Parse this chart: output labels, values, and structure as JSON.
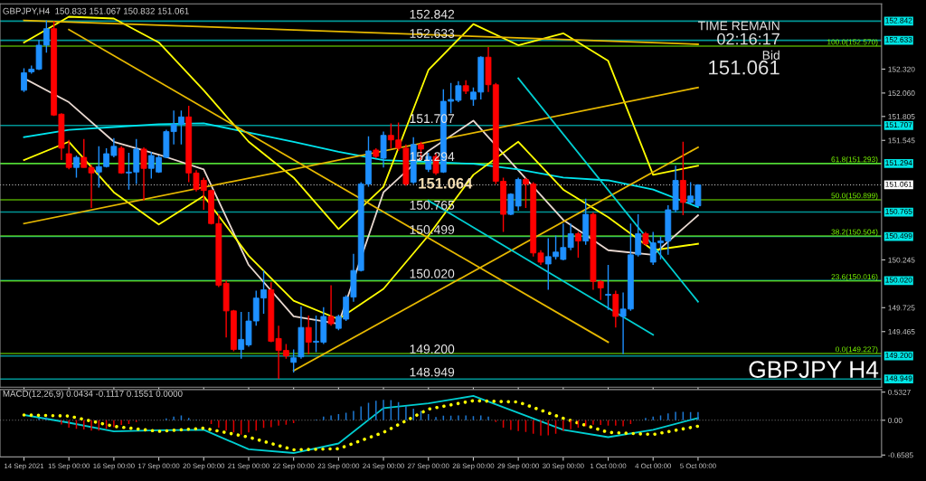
{
  "chart_data": [
    {
      "type": "candlestick",
      "title": "GBPJPY,H4  150.833 151.067 150.832 151.061",
      "categories": [
        "14 Sep 2021",
        null,
        null,
        null,
        null,
        null,
        "15 Sep 00:00",
        null,
        null,
        null,
        null,
        null,
        "16 Sep 00:00",
        null,
        null,
        null,
        null,
        null,
        "17 Sep 00:00",
        null,
        null,
        null,
        null,
        null,
        "20 Sep 00:00",
        null,
        null,
        null,
        null,
        null,
        "21 Sep 00:00",
        null,
        null,
        null,
        null,
        null,
        "22 Sep 00:00",
        null,
        null,
        null,
        null,
        null,
        "23 Sep 00:00",
        null,
        null,
        null,
        null,
        null,
        "24 Sep 00:00",
        null,
        null,
        null,
        null,
        null,
        "27 Sep 00:00",
        null,
        null,
        null,
        null,
        null,
        "28 Sep 00:00",
        null,
        null,
        null,
        null,
        null,
        "29 Sep 00:00",
        null,
        null,
        null,
        null,
        null,
        "30 Sep 00:00",
        null,
        null,
        null,
        null,
        null,
        "1 Oct 00:00",
        null,
        null,
        null,
        null,
        null,
        "4 Oct 00:00",
        null,
        null,
        null,
        null,
        null,
        "5 Oct 00:00",
        null,
        null,
        null,
        null,
        null,
        null,
        null,
        null,
        null,
        null,
        null,
        null,
        null,
        null,
        null,
        null,
        null,
        null,
        null,
        null,
        null,
        null,
        null,
        null
      ],
      "ohlc": [
        [
          152.09,
          152.33,
          152.07,
          152.28
        ],
        [
          152.29,
          152.36,
          152.27,
          152.32
        ],
        [
          152.32,
          152.64,
          152.31,
          152.58
        ],
        [
          152.58,
          152.85,
          152.5,
          152.76
        ],
        [
          152.76,
          152.84,
          151.81,
          151.82
        ],
        [
          151.83,
          151.84,
          151.33,
          151.46
        ],
        [
          151.4,
          151.55,
          151.23,
          151.25
        ],
        [
          151.25,
          151.38,
          151.14,
          151.36
        ],
        [
          151.36,
          151.56,
          151.25,
          151.25
        ],
        [
          151.25,
          151.28,
          150.81,
          151.19
        ],
        [
          151.2,
          151.48,
          151.03,
          151.26
        ],
        [
          151.26,
          151.46,
          151.25,
          151.4
        ],
        [
          151.38,
          151.57,
          151.36,
          151.48
        ],
        [
          151.46,
          151.48,
          151.18,
          151.19
        ],
        [
          151.19,
          151.41,
          151.01,
          151.2
        ],
        [
          151.2,
          151.56,
          151.07,
          151.45
        ],
        [
          151.45,
          151.47,
          150.89,
          151.24
        ],
        [
          151.24,
          151.42,
          151.13,
          151.38
        ],
        [
          151.2,
          151.38,
          151.19,
          151.36
        ],
        [
          151.36,
          151.66,
          151.35,
          151.64
        ],
        [
          151.64,
          151.87,
          151.5,
          151.72
        ],
        [
          151.72,
          151.87,
          151.5,
          151.8
        ],
        [
          151.8,
          151.92,
          151.09,
          151.19
        ],
        [
          151.19,
          151.22,
          150.99,
          151.01
        ],
        [
          151.11,
          151.14,
          150.79,
          151.0
        ],
        [
          151.0,
          151.01,
          150.63,
          150.64
        ],
        [
          150.64,
          150.74,
          149.95,
          149.97
        ],
        [
          149.99,
          150.02,
          149.4,
          149.69
        ],
        [
          149.69,
          149.7,
          149.25,
          149.27
        ],
        [
          149.27,
          149.68,
          149.17,
          149.38
        ],
        [
          149.32,
          149.68,
          149.3,
          149.58
        ],
        [
          149.58,
          149.91,
          149.53,
          149.83
        ],
        [
          149.83,
          150.13,
          149.66,
          149.92
        ],
        [
          149.92,
          150.0,
          149.35,
          149.36
        ],
        [
          149.39,
          149.53,
          148.95,
          149.26
        ],
        [
          149.26,
          149.33,
          149.17,
          149.2
        ],
        [
          149.13,
          149.27,
          149.02,
          149.18
        ],
        [
          149.19,
          149.74,
          149.17,
          149.51
        ],
        [
          149.51,
          149.64,
          149.22,
          149.35
        ],
        [
          149.35,
          149.64,
          149.24,
          149.36
        ],
        [
          149.35,
          149.73,
          149.33,
          149.63
        ],
        [
          149.63,
          149.97,
          149.53,
          149.55
        ],
        [
          149.5,
          149.65,
          149.48,
          149.63
        ],
        [
          149.6,
          149.86,
          149.58,
          149.84
        ],
        [
          149.84,
          150.31,
          149.79,
          150.13
        ],
        [
          150.13,
          151.09,
          150.12,
          151.07
        ],
        [
          151.07,
          151.59,
          151.04,
          151.43
        ],
        [
          151.44,
          151.46,
          151.35,
          151.37
        ],
        [
          151.35,
          151.64,
          151.25,
          151.6
        ],
        [
          151.6,
          151.73,
          151.46,
          151.55
        ],
        [
          151.55,
          151.74,
          151.43,
          151.46
        ],
        [
          151.46,
          151.5,
          151.05,
          151.07
        ],
        [
          151.09,
          151.58,
          151.07,
          151.5
        ],
        [
          151.5,
          151.53,
          151.33,
          151.45
        ],
        [
          151.23,
          151.41,
          151.2,
          151.37
        ],
        [
          151.37,
          151.41,
          151.17,
          151.19
        ],
        [
          151.2,
          152.1,
          151.19,
          151.97
        ],
        [
          151.97,
          152.17,
          151.84,
          151.99
        ],
        [
          151.98,
          152.19,
          151.96,
          152.14
        ],
        [
          152.14,
          152.2,
          152.05,
          152.08
        ],
        [
          151.99,
          152.12,
          151.92,
          152.07
        ],
        [
          152.07,
          152.46,
          151.99,
          152.45
        ],
        [
          152.45,
          152.56,
          152.07,
          152.15
        ],
        [
          152.15,
          152.17,
          151.07,
          151.1
        ],
        [
          151.1,
          151.14,
          150.55,
          150.74
        ],
        [
          150.74,
          150.97,
          150.73,
          150.96
        ],
        [
          150.83,
          151.14,
          150.78,
          151.12
        ],
        [
          151.12,
          151.14,
          150.81,
          151.07
        ],
        [
          151.07,
          151.09,
          150.28,
          150.32
        ],
        [
          150.32,
          150.35,
          150.19,
          150.22
        ],
        [
          150.2,
          150.48,
          149.92,
          150.28
        ],
        [
          150.28,
          150.51,
          150.25,
          150.33
        ],
        [
          150.25,
          150.64,
          150.24,
          150.38
        ],
        [
          150.38,
          150.64,
          150.35,
          150.53
        ],
        [
          150.53,
          150.55,
          150.27,
          150.45
        ],
        [
          150.45,
          150.91,
          150.41,
          150.74
        ],
        [
          150.74,
          150.76,
          149.92,
          150.01
        ],
        [
          150.01,
          150.02,
          149.81,
          149.94
        ],
        [
          149.86,
          150.19,
          149.7,
          149.87
        ],
        [
          149.87,
          149.91,
          149.51,
          149.63
        ],
        [
          149.63,
          149.89,
          149.22,
          149.71
        ],
        [
          149.71,
          150.64,
          149.69,
          150.3
        ],
        [
          150.3,
          150.74,
          150.28,
          150.53
        ],
        [
          150.53,
          150.55,
          150.4,
          150.42
        ],
        [
          150.22,
          150.55,
          150.19,
          150.43
        ],
        [
          150.43,
          150.5,
          150.25,
          150.45
        ],
        [
          150.45,
          150.84,
          150.3,
          150.79
        ],
        [
          150.79,
          151.27,
          150.76,
          151.11
        ],
        [
          151.11,
          151.53,
          150.73,
          150.87
        ],
        [
          150.87,
          151.09,
          150.86,
          150.94
        ],
        [
          150.833,
          151.067,
          150.832,
          151.061
        ],
        null,
        null,
        null,
        null,
        null,
        null,
        null,
        null,
        null,
        null,
        null,
        null,
        null,
        null,
        null,
        null,
        null,
        null,
        null,
        null,
        null,
        null,
        null,
        null
      ],
      "colors": [
        "#1e90ff",
        "#1e90ff",
        "#1e90ff",
        "#1e90ff",
        "#ff0000",
        "#ff0000",
        "#ff0000",
        "#1e90ff",
        "#ff0000",
        "#ff0000",
        "#1e90ff",
        "#1e90ff",
        "#1e90ff",
        "#ff0000",
        "#1e90ff",
        "#1e90ff",
        "#ff0000",
        "#1e90ff",
        "#1e90ff",
        "#1e90ff",
        "#1e90ff",
        "#1e90ff",
        "#ff0000",
        "#ff0000",
        "#ff0000",
        "#ff0000",
        "#ff0000",
        "#ff0000",
        "#ff0000",
        "#1e90ff",
        "#1e90ff",
        "#1e90ff",
        "#1e90ff",
        "#ff0000",
        "#ff0000",
        "#ff0000",
        "#1e90ff",
        "#1e90ff",
        "#ff0000",
        "#1e90ff",
        "#1e90ff",
        "#ff0000",
        "#1e90ff",
        "#1e90ff",
        "#1e90ff",
        "#1e90ff",
        "#1e90ff",
        "#ff0000",
        "#1e90ff",
        "#ff0000",
        "#ff0000",
        "#ff0000",
        "#1e90ff",
        "#ff0000",
        "#1e90ff",
        "#ff0000",
        "#1e90ff",
        "#1e90ff",
        "#1e90ff",
        "#ff0000",
        "#1e90ff",
        "#1e90ff",
        "#ff0000",
        "#ff0000",
        "#ff0000",
        "#1e90ff",
        "#1e90ff",
        "#ff0000",
        "#ff0000",
        "#ff0000",
        "#1e90ff",
        "#1e90ff",
        "#1e90ff",
        "#1e90ff",
        "#ff0000",
        "#1e90ff",
        "#ff0000",
        "#ff0000",
        "#1e90ff",
        "#ff0000",
        "#1e90ff",
        "#1e90ff",
        "#1e90ff",
        "#ff0000",
        "#1e90ff",
        "#1e90ff",
        "#1e90ff",
        "#1e90ff",
        "#ff0000",
        "#1e90ff",
        "#1e90ff",
        null,
        null,
        null,
        null,
        null,
        null,
        null,
        null,
        null,
        null,
        null,
        null,
        null,
        null,
        null,
        null,
        null,
        null,
        null,
        null,
        null,
        null,
        null,
        null
      ],
      "series": [
        {
          "type": "line",
          "color": "#e8d8d0",
          "x": [
            "14 Sep 2021",
            "15 Sep 00:00",
            "16 Sep 00:00",
            "17 Sep 00:00",
            "20 Sep 00:00",
            "21 Sep 00:00",
            "22 Sep 00:00",
            "23 Sep 00:00",
            "24 Sep 00:00",
            "27 Sep 00:00",
            "28 Sep 00:00",
            "29 Sep 00:00",
            "30 Sep 00:00",
            "1 Oct 00:00",
            "4 Oct 00:00",
            "5 Oct 00:00"
          ],
          "values": [
            152.22,
            151.96,
            151.53,
            151.39,
            151.23,
            150.19,
            149.63,
            149.55,
            150.98,
            151.43,
            151.76,
            151.22,
            150.68,
            150.35,
            150.3,
            150.73
          ]
        },
        {
          "type": "line",
          "color": "#00e5ee",
          "x": [
            "14 Sep 2021",
            "15 Sep 00:00",
            "16 Sep 00:00",
            "17 Sep 00:00",
            "20 Sep 00:00",
            "21 Sep 00:00",
            "22 Sep 00:00",
            "23 Sep 00:00",
            "24 Sep 00:00",
            "27 Sep 00:00",
            "28 Sep 00:00",
            "29 Sep 00:00",
            "30 Sep 00:00",
            "1 Oct 00:00",
            "4 Oct 00:00",
            "5 Oct 00:00"
          ],
          "values": [
            151.58,
            151.66,
            151.69,
            151.72,
            151.73,
            151.63,
            151.53,
            151.42,
            151.33,
            151.31,
            151.29,
            151.23,
            151.14,
            151.11,
            151.01,
            150.82
          ]
        },
        {
          "type": "line",
          "color": "#ffff00",
          "x": [
            "14 Sep 2021",
            "15 Sep 00:00",
            "16 Sep 00:00",
            "17 Sep 00:00",
            "20 Sep 00:00",
            "21 Sep 00:00",
            "22 Sep 00:00",
            "23 Sep 00:00",
            "24 Sep 00:00",
            "27 Sep 00:00",
            "28 Sep 00:00",
            "29 Sep 00:00",
            "30 Sep 00:00",
            "1 Oct 00:00",
            "4 Oct 00:00",
            "5 Oct 00:00"
          ],
          "values": [
            152.61,
            152.89,
            152.87,
            152.61,
            152.09,
            151.53,
            151.14,
            150.58,
            151.04,
            152.31,
            152.81,
            152.58,
            152.71,
            152.41,
            151.17,
            151.27
          ]
        },
        {
          "type": "line",
          "color": "#ffff00",
          "x": [
            "14 Sep 2021",
            "15 Sep 00:00",
            "16 Sep 00:00",
            "17 Sep 00:00",
            "20 Sep 00:00",
            "21 Sep 00:00",
            "22 Sep 00:00",
            "23 Sep 00:00",
            "24 Sep 00:00",
            "27 Sep 00:00",
            "28 Sep 00:00",
            "29 Sep 00:00",
            "30 Sep 00:00",
            "1 Oct 00:00",
            "4 Oct 00:00",
            "5 Oct 00:00"
          ],
          "values": [
            151.33,
            151.53,
            150.98,
            150.63,
            150.94,
            150.29,
            149.8,
            149.6,
            149.93,
            150.51,
            151.17,
            151.53,
            151.01,
            150.71,
            150.35,
            150.42
          ]
        },
        {
          "type": "line",
          "color": "#e6b800",
          "x": [
            "14 Sep 2021",
            "5 Oct 00:00"
          ],
          "values": [
            150.64,
            152.12
          ]
        },
        {
          "type": "line",
          "color": "#e6b800",
          "x": [
            "15 Sep 00:00",
            "1 Oct 00:00"
          ],
          "values": [
            152.75,
            149.35
          ]
        },
        {
          "type": "line",
          "color": "#e6b800",
          "x": [
            "22 Sep 00:00",
            "5 Oct 00:00"
          ],
          "values": [
            149.04,
            151.47
          ]
        },
        {
          "type": "line",
          "color": "#e6b800",
          "x": [
            "14 Sep 2021",
            "5 Oct 00:00"
          ],
          "values": [
            152.85,
            152.59
          ]
        },
        {
          "type": "line",
          "color": "#00ced1",
          "x": [
            "29 Sep 00:00",
            "5 Oct 00:00"
          ],
          "values": [
            152.22,
            149.79
          ]
        },
        {
          "type": "line",
          "color": "#00ced1",
          "x": [
            "27 Sep 00:00",
            "4 Oct 00:00"
          ],
          "values": [
            150.89,
            149.43
          ]
        }
      ],
      "ylim": [
        148.86,
        153.03
      ],
      "yticks": [
        {
          "value": 152.32,
          "label": "152.320"
        },
        {
          "value": 152.06,
          "label": "152.060"
        },
        {
          "value": 151.805,
          "label": "151.805"
        },
        {
          "value": 151.545,
          "label": "151.545"
        },
        {
          "value": 150.245,
          "label": "150.245"
        },
        {
          "value": 149.725,
          "label": "149.725"
        },
        {
          "value": 149.465,
          "label": "149.465"
        }
      ],
      "ref_lines": [
        {
          "axis": "y",
          "value": 152.842,
          "label": "152.842",
          "color": "#00e5e5"
        },
        {
          "axis": "y",
          "value": 152.633,
          "label": "152.633",
          "color": "#00e5e5"
        },
        {
          "axis": "y",
          "value": 151.707,
          "label": "151.707",
          "color": "#00e5e5"
        },
        {
          "axis": "y",
          "value": 151.294,
          "label": "151.294",
          "color": "#00e5e5"
        },
        {
          "axis": "y",
          "value": 150.765,
          "label": "150.765",
          "color": "#00e5e5"
        },
        {
          "axis": "y",
          "value": 150.499,
          "label": "150.499",
          "color": "#00e5e5"
        },
        {
          "axis": "y",
          "value": 150.02,
          "label": "150.020",
          "color": "#00e5e5"
        },
        {
          "axis": "y",
          "value": 149.2,
          "label": "149.200",
          "color": "#00e5e5"
        },
        {
          "axis": "y",
          "value": 148.949,
          "label": "148.949",
          "color": "#00e5e5"
        },
        {
          "axis": "y",
          "value": 152.57,
          "color": "#7cfc00"
        },
        {
          "axis": "y",
          "value": 151.293,
          "color": "#7cfc00"
        },
        {
          "axis": "y",
          "value": 150.899,
          "color": "#7cfc00"
        },
        {
          "axis": "y",
          "value": 150.504,
          "color": "#7cfc00"
        },
        {
          "axis": "y",
          "value": 150.016,
          "color": "#7cfc00"
        },
        {
          "axis": "y",
          "value": 149.227,
          "color": "#7cfc00"
        },
        {
          "axis": "y",
          "value": 151.061,
          "label": "151.061",
          "color": "#ffffff",
          "line_style": "dotted"
        }
      ],
      "annotations": [
        {
          "text": "151.064",
          "y": 151.064
        },
        "TIME REMAIN",
        "02:16:17",
        "Bid",
        "151.061",
        "GBPJPY H4",
        {
          "text": "152.842",
          "y": 152.842
        },
        {
          "text": "152.633",
          "y": 152.633
        },
        {
          "text": "151.707",
          "y": 151.707
        },
        {
          "text": "151.294",
          "y": 151.294
        },
        {
          "text": "150.765",
          "y": 150.765
        },
        {
          "text": "150.499",
          "y": 150.499
        },
        {
          "text": "150.020",
          "y": 150.02
        },
        {
          "text": "149.200",
          "y": 149.2
        },
        {
          "text": "148.949",
          "y": 148.949
        },
        {
          "text": "100.0(152.570)",
          "y": 152.57
        },
        {
          "text": "61.8(151.293)",
          "y": 151.293
        },
        {
          "text": "50.0(150.899)",
          "y": 150.899
        },
        {
          "text": "38.2(150.504)",
          "y": 150.504
        },
        {
          "text": "23.6(150.016)",
          "y": 150.016
        },
        {
          "text": "0.0(149.227)",
          "y": 149.227
        }
      ],
      "tick_labels": "y",
      "grid": false,
      "legend": false
    },
    {
      "type": "bar",
      "title": "MACD(12,26,9) 0.0434 -0.1117 0.1551 0.0000",
      "categories": [
        "14 Sep 2021",
        null,
        null,
        null,
        null,
        null,
        "15 Sep 00:00",
        null,
        null,
        null,
        null,
        null,
        "16 Sep 00:00",
        null,
        null,
        null,
        null,
        null,
        "17 Sep 00:00",
        null,
        null,
        null,
        null,
        null,
        "20 Sep 00:00",
        null,
        null,
        null,
        null,
        null,
        "21 Sep 00:00",
        null,
        null,
        null,
        null,
        null,
        "22 Sep 00:00",
        null,
        null,
        null,
        null,
        null,
        "23 Sep 00:00",
        null,
        null,
        null,
        null,
        null,
        "24 Sep 00:00",
        null,
        null,
        null,
        null,
        null,
        "27 Sep 00:00",
        null,
        null,
        null,
        null,
        null,
        "28 Sep 00:00",
        null,
        null,
        null,
        null,
        null,
        "29 Sep 00:00",
        null,
        null,
        null,
        null,
        null,
        "30 Sep 00:00",
        null,
        null,
        null,
        null,
        null,
        "1 Oct 00:00",
        null,
        null,
        null,
        null,
        null,
        "4 Oct 00:00",
        null,
        null,
        null,
        null,
        null,
        "5 Oct 00:00",
        null,
        null,
        null,
        null,
        null,
        null,
        null,
        null,
        null,
        null,
        null,
        null,
        null,
        null,
        null,
        null,
        null,
        null,
        null,
        null,
        null,
        null,
        null,
        null
      ],
      "series": [
        {
          "values": [
            0,
            0.01,
            0.03,
            0.055,
            0,
            -0.08,
            -0.14,
            -0.16,
            -0.175,
            -0.195,
            -0.195,
            -0.16,
            -0.13,
            -0.09,
            -0.07,
            -0.035,
            null,
            null,
            0,
            0.035,
            0.07,
            0.09,
            0.045,
            0.01,
            null,
            -0.07,
            -0.14,
            -0.195,
            -0.23,
            -0.275,
            -0.23,
            -0.195,
            -0.145,
            -0.13,
            -0.1,
            -0.085,
            -0.055,
            null,
            0,
            0.015,
            0.07,
            0.09,
            0.115,
            0.14,
            0.175,
            0.26,
            0.33,
            0.37,
            0.385,
            0.38,
            0.345,
            0.265,
            0.22,
            0.175,
            0.115,
            0.06,
            0.085,
            0.085,
            0.09,
            0.09,
            0.08,
            0.09,
            0.07,
            -0.035,
            -0.14,
            -0.185,
            -0.205,
            -0.22,
            -0.255,
            -0.29,
            -0.285,
            -0.255,
            -0.205,
            -0.17,
            -0.14,
            -0.115,
            -0.085,
            -0.09,
            -0.1,
            -0.1,
            -0.115,
            -0.07,
            0,
            0.045,
            0.07,
            0.09,
            0.13,
            0.16,
            0.16,
            0.155,
            0.1551,
            null,
            null,
            null,
            null,
            null,
            null,
            null,
            null,
            null,
            null,
            null,
            null,
            null,
            null,
            null,
            null,
            null,
            null,
            null,
            null,
            null,
            null,
            null,
            null
          ],
          "colors": [
            "#1e78d2",
            "#1e78d2",
            "#1e78d2",
            "#1e78d2",
            "#1e78d2",
            "#e00000",
            "#e00000",
            "#e00000",
            "#e00000",
            "#e00000",
            "#e00000",
            "#e00000",
            "#e00000",
            "#e00000",
            "#e00000",
            "#e00000",
            "#e00000",
            "#e00000",
            "#1e78d2",
            "#1e78d2",
            "#1e78d2",
            "#1e78d2",
            "#1e78d2",
            "#1e78d2",
            "#e00000",
            "#e00000",
            "#e00000",
            "#e00000",
            "#e00000",
            "#e00000",
            "#e00000",
            "#e00000",
            "#e00000",
            "#e00000",
            "#e00000",
            "#e00000",
            "#e00000",
            "#e00000",
            "#1e78d2",
            "#1e78d2",
            "#1e78d2",
            "#1e78d2",
            "#1e78d2",
            "#1e78d2",
            "#1e78d2",
            "#1e78d2",
            "#1e78d2",
            "#1e78d2",
            "#1e78d2",
            "#1e78d2",
            "#1e78d2",
            "#1e78d2",
            "#1e78d2",
            "#1e78d2",
            "#1e78d2",
            "#1e78d2",
            "#1e78d2",
            "#1e78d2",
            "#1e78d2",
            "#1e78d2",
            "#1e78d2",
            "#1e78d2",
            "#1e78d2",
            "#e00000",
            "#e00000",
            "#e00000",
            "#e00000",
            "#e00000",
            "#e00000",
            "#e00000",
            "#e00000",
            "#e00000",
            "#e00000",
            "#e00000",
            "#e00000",
            "#e00000",
            "#e00000",
            "#e00000",
            "#e00000",
            "#e00000",
            "#e00000",
            "#e00000",
            "#1e78d2",
            "#1e78d2",
            "#1e78d2",
            "#1e78d2",
            "#1e78d2",
            "#1e78d2",
            "#1e78d2",
            "#1e78d2",
            "#1e78d2",
            null,
            null,
            null,
            null,
            null,
            null,
            null,
            null,
            null,
            null,
            null,
            null,
            null,
            null,
            null,
            null,
            null,
            null,
            null,
            null,
            null,
            null,
            null,
            null
          ]
        },
        {
          "type": "line",
          "color": "#00ced1",
          "x": [
            "14 Sep 2021",
            "15 Sep 00:00",
            "16 Sep 00:00",
            "17 Sep 00:00",
            "20 Sep 00:00",
            "21 Sep 00:00",
            "22 Sep 00:00",
            "23 Sep 00:00",
            "24 Sep 00:00",
            "27 Sep 00:00",
            "28 Sep 00:00",
            "29 Sep 00:00",
            "30 Sep 00:00",
            "1 Oct 00:00",
            "4 Oct 00:00",
            "5 Oct 00:00"
          ],
          "values": [
            0.1,
            -0.046,
            -0.21,
            -0.19,
            -0.18,
            -0.55,
            -0.62,
            -0.44,
            0.23,
            0.32,
            0.46,
            0.14,
            -0.18,
            -0.32,
            -0.18,
            0.0434
          ]
        },
        {
          "type": "line",
          "color": "#ffff00",
          "line_style": "dotted",
          "x": [
            "14 Sep 2021",
            "15 Sep 00:00",
            "16 Sep 00:00",
            "17 Sep 00:00",
            "20 Sep 00:00",
            "21 Sep 00:00",
            "22 Sep 00:00",
            "23 Sep 00:00",
            "24 Sep 00:00",
            "27 Sep 00:00",
            "28 Sep 00:00",
            "29 Sep 00:00",
            "30 Sep 00:00",
            "1 Oct 00:00",
            "4 Oct 00:00",
            "5 Oct 00:00"
          ],
          "values": [
            0.1,
            0.08,
            -0.115,
            -0.21,
            -0.15,
            -0.32,
            -0.56,
            -0.54,
            -0.23,
            0.21,
            0.37,
            0.345,
            0.037,
            -0.23,
            -0.27,
            -0.1117
          ]
        }
      ],
      "ylim": [
        -0.695,
        0.58
      ],
      "yticks": [
        {
          "value": 0.5327,
          "label": "0.5327"
        },
        {
          "value": 0,
          "label": "0.00"
        },
        {
          "value": -0.6585,
          "label": "-0.6585"
        }
      ],
      "ref_lines": [
        {
          "axis": "y",
          "value": 0,
          "color": "#909090",
          "line_style": "dotted"
        }
      ],
      "grid": false,
      "legend": false
    }
  ]
}
